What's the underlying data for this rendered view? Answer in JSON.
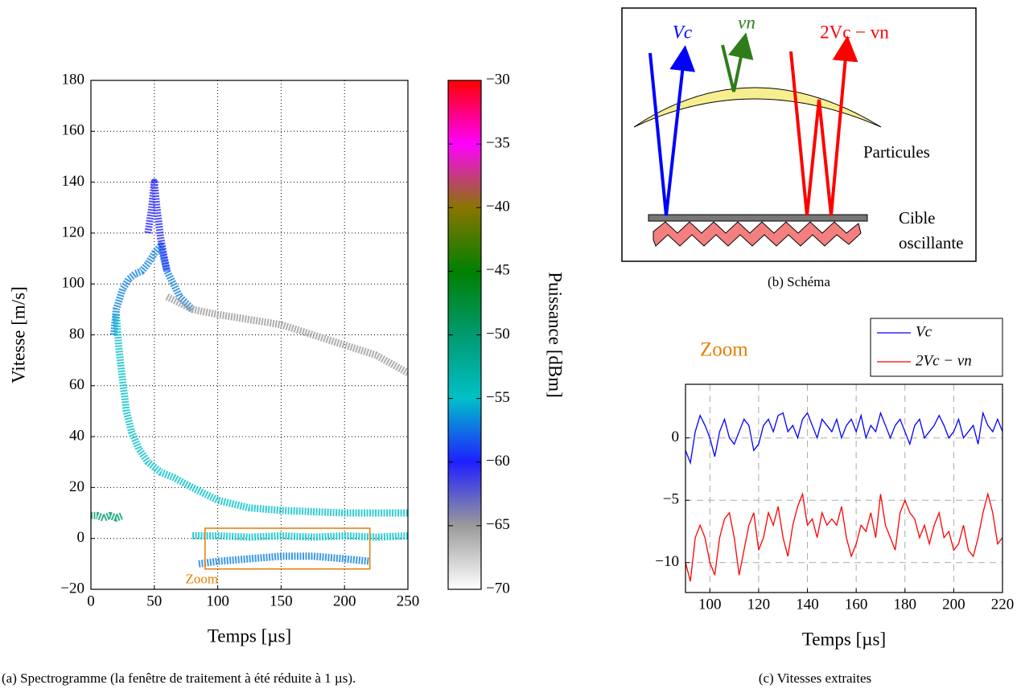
{
  "chart_data": [
    {
      "type": "spectrogram",
      "caption": "(a) Spectrogramme (la fenêtre de traitement à été réduite à 1 µs).",
      "xlabel": "Temps [µs]",
      "ylabel": "Vitesse [m/s]",
      "xlim": [
        0,
        250
      ],
      "xticks": [
        0,
        50,
        100,
        150,
        200,
        250
      ],
      "ylim": [
        -20,
        180
      ],
      "yticks": [
        {
          "value": -20,
          "label": "−20"
        },
        0,
        20,
        40,
        60,
        80,
        100,
        120,
        140,
        160,
        180
      ],
      "grid": true,
      "clabel": "Puissance [dBm]",
      "clim": [
        -70,
        -30
      ],
      "cticks": [
        {
          "value": -70,
          "label": "−70"
        },
        {
          "value": -65,
          "label": "−65"
        },
        {
          "value": -60,
          "label": "−60"
        },
        {
          "value": -55,
          "label": "−55"
        },
        {
          "value": -50,
          "label": "−50"
        },
        {
          "value": -45,
          "label": "−45"
        },
        {
          "value": -40,
          "label": "−40"
        },
        {
          "value": -35,
          "label": "−35"
        },
        {
          "value": -30,
          "label": "−30"
        }
      ],
      "colormap": [
        "#ffffff",
        "#9a9a9a",
        "#1f1fff",
        "#00c0c8",
        "#009a70",
        "#008000",
        "#8a7500",
        "#ff00ff",
        "#ff0000"
      ],
      "ridges": [
        {
          "x": [
            0,
            5,
            10,
            15,
            20,
            25
          ],
          "y": [
            9,
            9,
            8,
            9,
            8,
            9
          ],
          "level": -50
        },
        {
          "x": [
            18,
            20,
            25,
            30,
            35,
            40,
            45,
            50,
            55,
            60,
            65,
            70,
            80
          ],
          "y": [
            80,
            90,
            98,
            102,
            104,
            105,
            108,
            112,
            115,
            105,
            100,
            95,
            90
          ],
          "level": -57
        },
        {
          "x": [
            45,
            48,
            50,
            52,
            55,
            58,
            60
          ],
          "y": [
            120,
            130,
            140,
            130,
            118,
            110,
            105
          ],
          "level": -60
        },
        {
          "x": [
            20,
            22,
            25,
            28,
            32,
            38,
            45,
            55,
            65,
            80,
            100,
            125,
            150,
            200,
            250
          ],
          "y": [
            88,
            75,
            62,
            50,
            42,
            35,
            30,
            26,
            24,
            20,
            15,
            12,
            11,
            10,
            10
          ],
          "level": -55
        },
        {
          "x": [
            60,
            80,
            100,
            125,
            150,
            175,
            200,
            225,
            250
          ],
          "y": [
            95,
            90,
            88,
            86,
            84,
            80,
            76,
            72,
            65
          ],
          "level": -65
        },
        {
          "x": [
            80,
            100,
            125,
            150,
            175,
            200,
            225,
            250
          ],
          "y": [
            1,
            1,
            0.5,
            1,
            0.5,
            1,
            0.5,
            1
          ],
          "level": -55
        },
        {
          "x": [
            85,
            100,
            125,
            150,
            175,
            200,
            220
          ],
          "y": [
            -10,
            -9,
            -8,
            -7,
            -7,
            -8,
            -9
          ],
          "level": -57
        }
      ],
      "zoom": {
        "label": "Zoom",
        "xlim": [
          90,
          220
        ],
        "ylim": [
          -12,
          4
        ],
        "color": "#e67e00"
      }
    },
    {
      "type": "line",
      "caption": "(c) Vitesses extraites",
      "annotation": "Zoom",
      "annotation_color": "#e67e00",
      "xlabel": "Temps [µs]",
      "xlim": [
        90,
        220
      ],
      "xticks": [
        100,
        120,
        140,
        160,
        180,
        200,
        220
      ],
      "ylim": [
        -12.4,
        4.3
      ],
      "yticks": [
        {
          "value": -10,
          "label": "−10"
        },
        {
          "value": -5,
          "label": "−5"
        },
        0
      ],
      "grid": true,
      "legend": "upper right",
      "x": [
        90,
        92,
        94,
        96,
        98,
        100,
        102,
        104,
        106,
        108,
        110,
        112,
        114,
        116,
        118,
        120,
        122,
        124,
        126,
        128,
        130,
        132,
        134,
        136,
        138,
        140,
        142,
        144,
        146,
        148,
        150,
        152,
        154,
        156,
        158,
        160,
        162,
        164,
        166,
        168,
        170,
        172,
        174,
        176,
        178,
        180,
        182,
        184,
        186,
        188,
        190,
        192,
        194,
        196,
        198,
        200,
        202,
        204,
        206,
        208,
        210,
        212,
        214,
        216,
        218,
        220
      ],
      "series": [
        {
          "name": "Vc",
          "color": "#0000ff",
          "values": [
            -1,
            -2,
            0.5,
            1.8,
            1,
            0,
            -1.5,
            0.5,
            1.5,
            0,
            -0.5,
            0.5,
            1.5,
            1,
            -1,
            -0.5,
            1,
            1.5,
            0.5,
            1.8,
            2,
            0.5,
            1,
            0,
            1.5,
            2,
            1,
            0,
            1.5,
            1,
            0.5,
            1.5,
            0,
            1,
            1.5,
            0.5,
            1.8,
            0,
            1,
            0.5,
            2,
            1,
            0,
            1,
            1.5,
            0.5,
            -0.5,
            1,
            1.5,
            0,
            0.5,
            1,
            1.8,
            1,
            0,
            0.5,
            1.5,
            0,
            0.5,
            1,
            -0.5,
            2,
            1,
            0.5,
            1.5,
            0.5
          ]
        },
        {
          "name": "2Vc − vn",
          "color": "#ff0000",
          "values": [
            -10,
            -11.5,
            -8,
            -7,
            -8,
            -10,
            -11,
            -8,
            -6.5,
            -6,
            -8,
            -11,
            -9,
            -7,
            -6,
            -9,
            -8,
            -6,
            -7,
            -5.5,
            -8,
            -9.5,
            -7,
            -5.5,
            -4.5,
            -7,
            -6.5,
            -8,
            -6,
            -7,
            -6.5,
            -7,
            -5.5,
            -8,
            -9.5,
            -8.5,
            -7,
            -7.5,
            -6,
            -8,
            -4.5,
            -7,
            -8,
            -9,
            -6,
            -5,
            -6,
            -6.5,
            -8,
            -7,
            -8.5,
            -7,
            -6,
            -8,
            -7.5,
            -9,
            -8.5,
            -7,
            -9,
            -9.5,
            -8,
            -6,
            -4.5,
            -6,
            -8.5,
            -8
          ]
        }
      ]
    }
  ],
  "schema": {
    "caption": "(b) Schéma",
    "label_vc": "Vc",
    "label_vn": "vn",
    "label_mix": "2Vc − vn",
    "label_particles": "Particules",
    "label_target_1": "Cible",
    "label_target_2": "oscillante"
  }
}
